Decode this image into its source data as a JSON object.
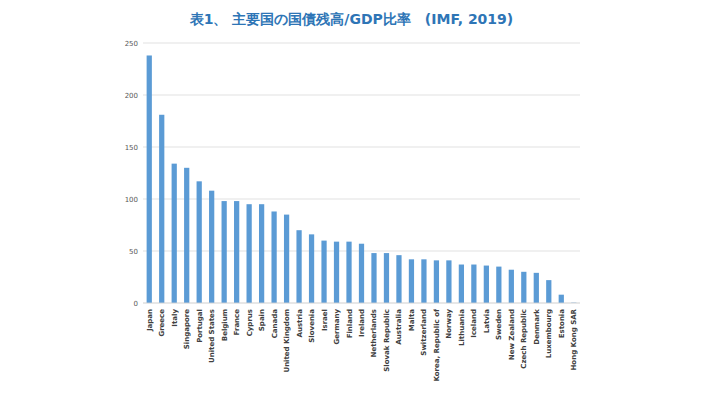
{
  "chart_data": {
    "type": "bar",
    "title": "表1、 主要国の国債残高/GDP比率　(IMF, 2019)",
    "categories": [
      "Japan",
      "Greece",
      "Italy",
      "Singapore",
      "Portugal",
      "United States",
      "Belgium",
      "France",
      "Cyprus",
      "Spain",
      "Canada",
      "United Kingdom",
      "Austria",
      "Slovenia",
      "Israel",
      "Germany",
      "Finland",
      "Ireland",
      "Netherlands",
      "Slovak Republic",
      "Australia",
      "Malta",
      "Switzerland",
      "Korea, Republic of",
      "Norway",
      "Lithuania",
      "Iceland",
      "Latvia",
      "Sweden",
      "New Zealand",
      "Czech Republic",
      "Denmark",
      "Luxembourg",
      "Estonia",
      "Hong Kong SAR"
    ],
    "values": [
      238,
      181,
      134,
      130,
      117,
      108,
      98,
      98,
      95,
      95,
      88,
      85,
      70,
      66,
      60,
      59,
      59,
      57,
      48,
      48,
      46,
      42,
      42,
      41,
      41,
      37,
      37,
      36,
      35,
      32,
      30,
      29,
      22,
      8,
      0.3
    ],
    "color": "#5b9bd5",
    "ylim": [
      0,
      250
    ],
    "yticks": [
      0,
      50,
      100,
      150,
      200,
      250
    ],
    "grid": true
  }
}
